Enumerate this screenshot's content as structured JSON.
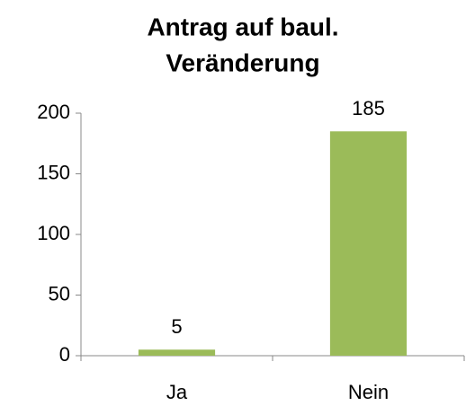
{
  "chart_data": {
    "type": "bar",
    "title": [
      "Antrag auf baul.",
      "Veränderung"
    ],
    "categories": [
      "Ja",
      "Nein"
    ],
    "values": [
      5,
      185
    ],
    "color": "#9bbb59",
    "ylim": [
      0,
      200
    ],
    "yticks": [
      0,
      50,
      100,
      150,
      200
    ],
    "grid": false
  }
}
